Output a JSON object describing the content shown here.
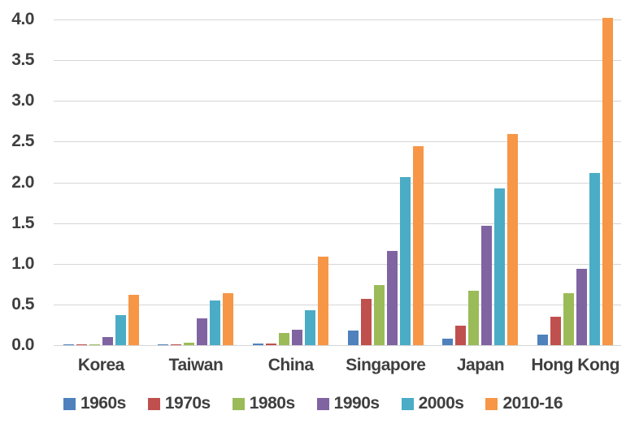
{
  "chart_data": {
    "type": "bar",
    "title": "",
    "xlabel": "",
    "ylabel": "",
    "categories": [
      "Korea",
      "Taiwan",
      "China",
      "Singapore",
      "Japan",
      "Hong Kong"
    ],
    "series": [
      {
        "name": "1960s",
        "color": "#4F81BD",
        "values": [
          0.01,
          0.01,
          0.02,
          0.18,
          0.08,
          0.13
        ]
      },
      {
        "name": "1970s",
        "color": "#C0504D",
        "values": [
          0.01,
          0.01,
          0.02,
          0.57,
          0.24,
          0.35
        ]
      },
      {
        "name": "1980s",
        "color": "#9BBB59",
        "values": [
          0.01,
          0.03,
          0.15,
          0.74,
          0.67,
          0.64
        ]
      },
      {
        "name": "1990s",
        "color": "#8064A2",
        "values": [
          0.1,
          0.33,
          0.19,
          1.16,
          1.47,
          0.94
        ]
      },
      {
        "name": "2000s",
        "color": "#4BACC6",
        "values": [
          0.37,
          0.55,
          0.43,
          2.06,
          1.93,
          2.11
        ]
      },
      {
        "name": "2010-16",
        "color": "#F79646",
        "values": [
          0.62,
          0.64,
          1.09,
          2.44,
          2.59,
          4.02
        ]
      }
    ],
    "ylim": [
      0.0,
      4.0
    ],
    "ytick_labels": [
      "0.0",
      "0.5",
      "1.0",
      "1.5",
      "2.0",
      "2.5",
      "3.0",
      "3.5",
      "4.0"
    ],
    "grid": true,
    "legend_position": "bottom"
  },
  "colors": {
    "background": "#ffffff",
    "gridline": "#d6d6d6",
    "axis_text": "#3f3f3f"
  }
}
